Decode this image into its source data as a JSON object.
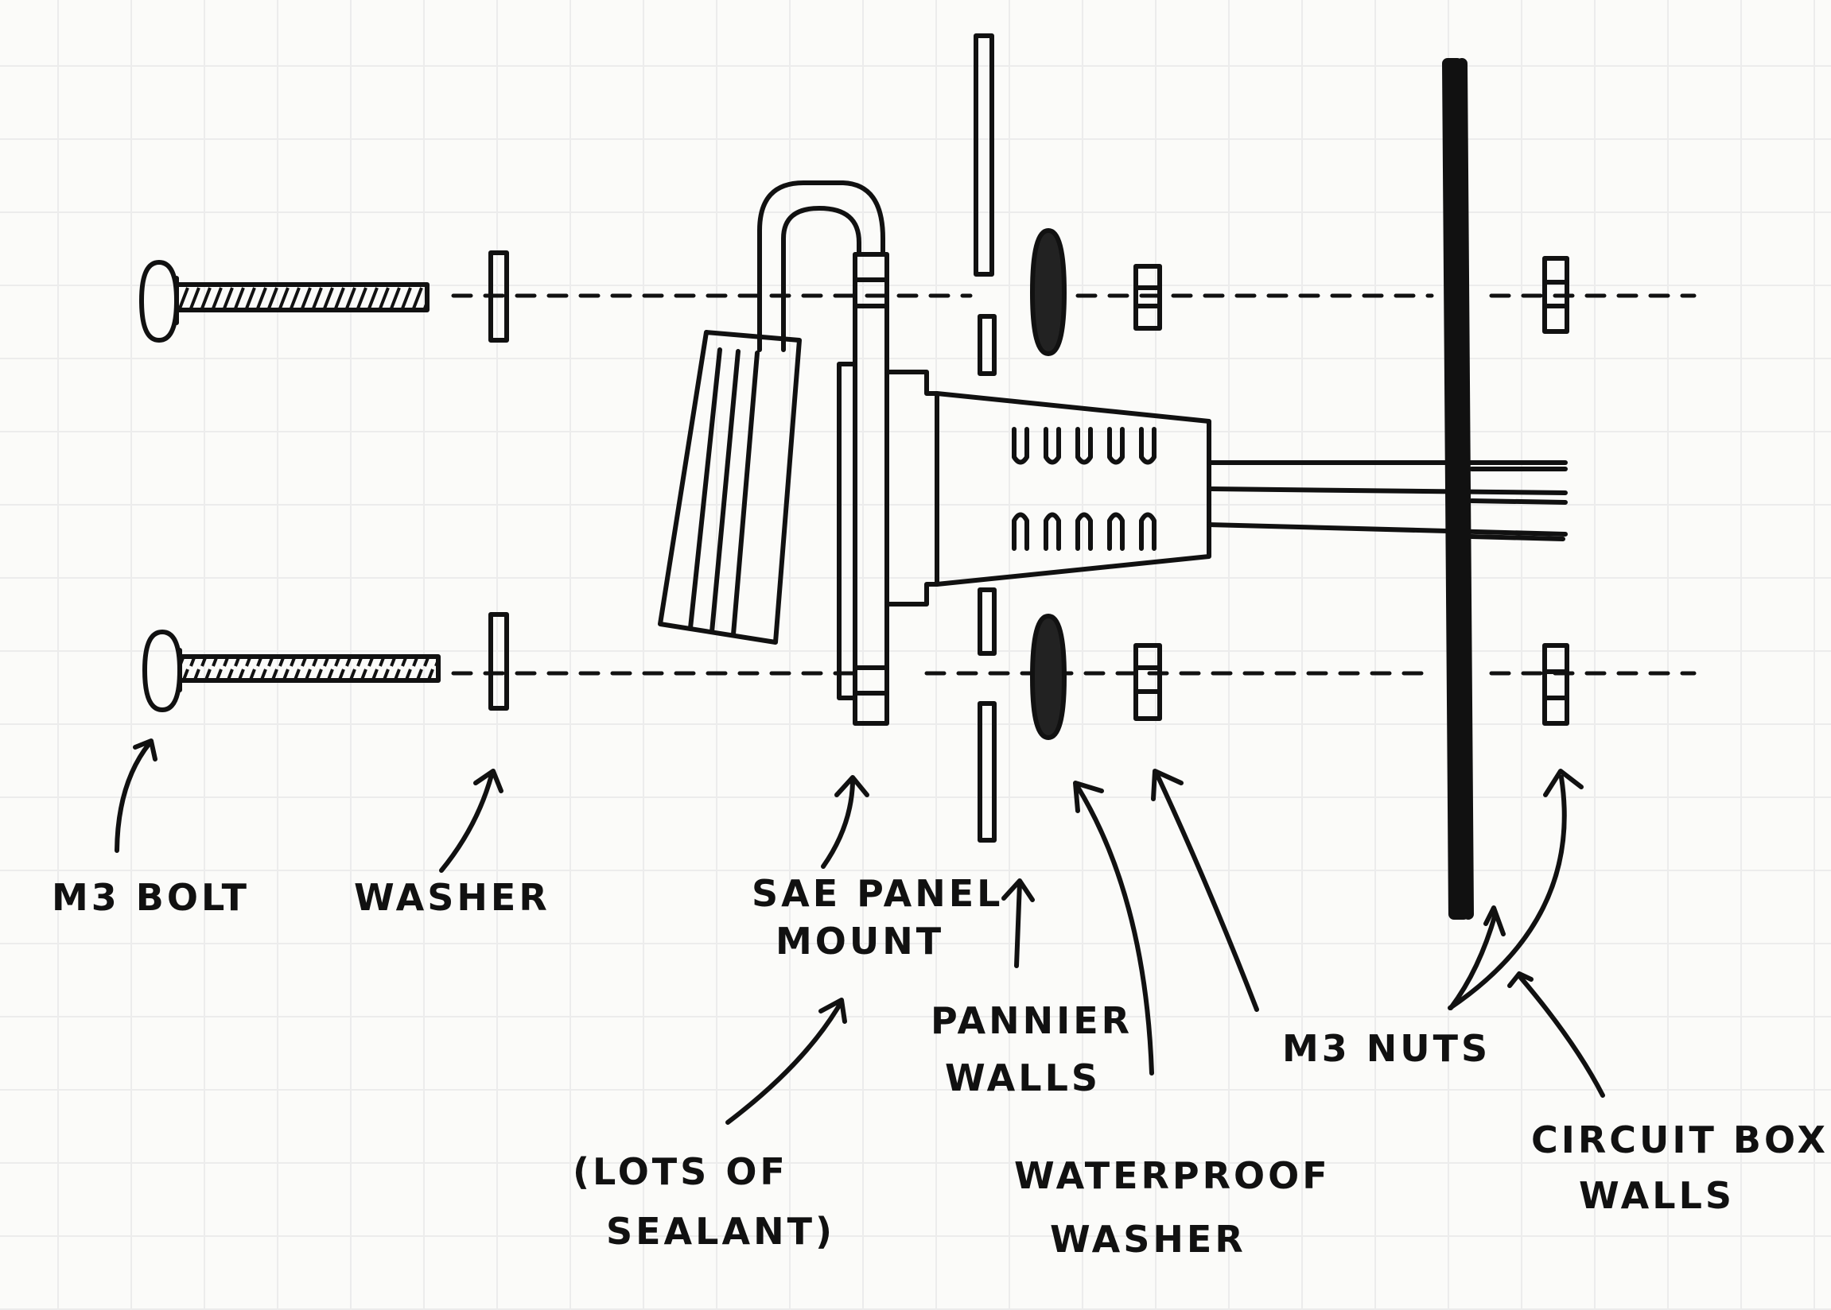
{
  "diagram": {
    "labels": {
      "m3_bolt": "M3 BOLT",
      "washer": "WASHER",
      "sae_panel_mount_1": "SAE PANEL",
      "sae_panel_mount_2": "MOUNT",
      "sealant_1": "(LOTS OF",
      "sealant_2": "SEALANT)",
      "pannier_walls_1": "PANNIER",
      "pannier_walls_2": "WALLS",
      "waterproof_washer_1": "WATERPROOF",
      "waterproof_washer_2": "WASHER",
      "m3_nuts": "M3 NUTS",
      "circuit_box_walls_1": "CIRCUIT BOX",
      "circuit_box_walls_2": "WALLS"
    }
  }
}
